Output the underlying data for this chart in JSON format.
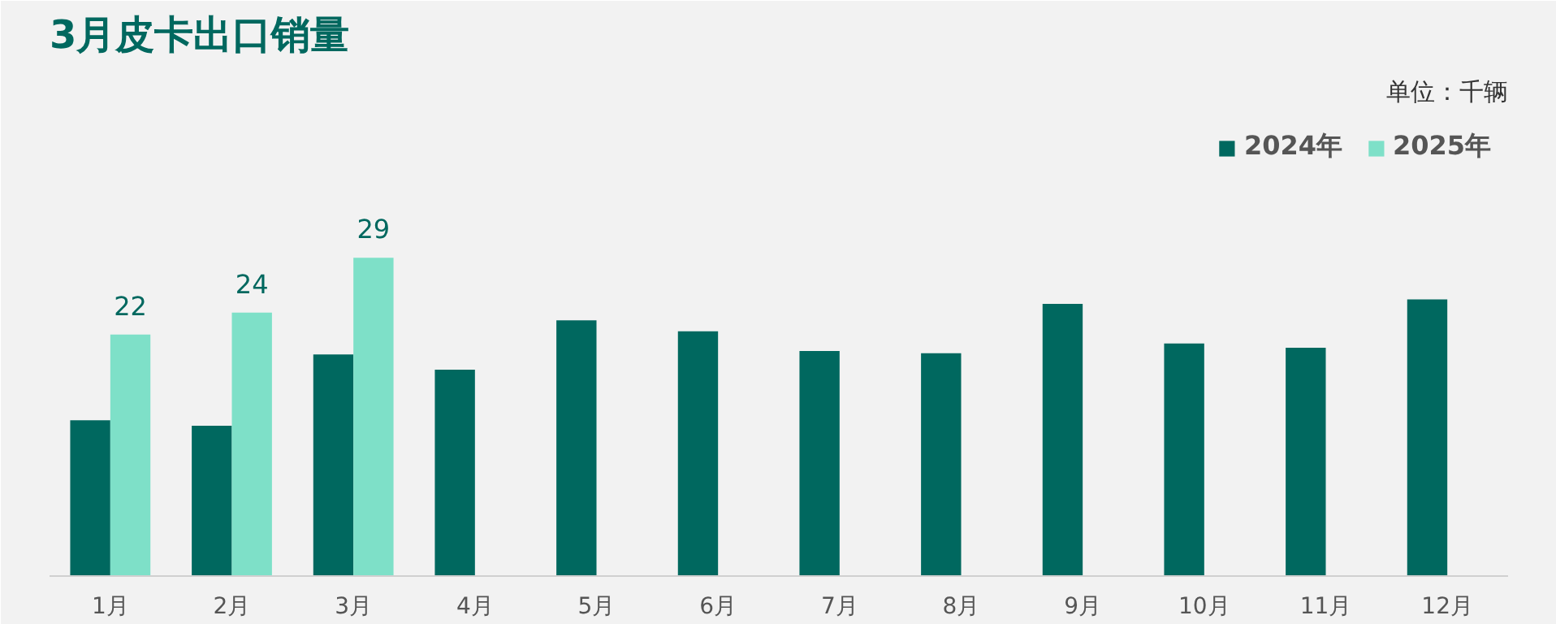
{
  "chart_data": {
    "type": "bar",
    "title": "3月皮卡出口销量",
    "annotations": [
      "单位：千辆"
    ],
    "categories": [
      "1月",
      "2月",
      "3月",
      "4月",
      "5月",
      "6月",
      "7月",
      "8月",
      "9月",
      "10月",
      "11月",
      "12月"
    ],
    "legend": "top right",
    "grid": false,
    "series": [
      {
        "name": "2024年",
        "color": "#00685f",
        "values": [
          14.2,
          13.7,
          20.2,
          18.8,
          23.3,
          22.3,
          20.5,
          20.3,
          24.8,
          21.2,
          20.8,
          25.2
        ]
      },
      {
        "name": "2025年",
        "color": "#7ee0c8",
        "values": [
          22,
          24,
          29,
          null,
          null,
          null,
          null,
          null,
          null,
          null,
          null,
          null
        ],
        "value_labels": [
          "22",
          "24",
          "29",
          null,
          null,
          null,
          null,
          null,
          null,
          null,
          null,
          null
        ]
      }
    ]
  }
}
